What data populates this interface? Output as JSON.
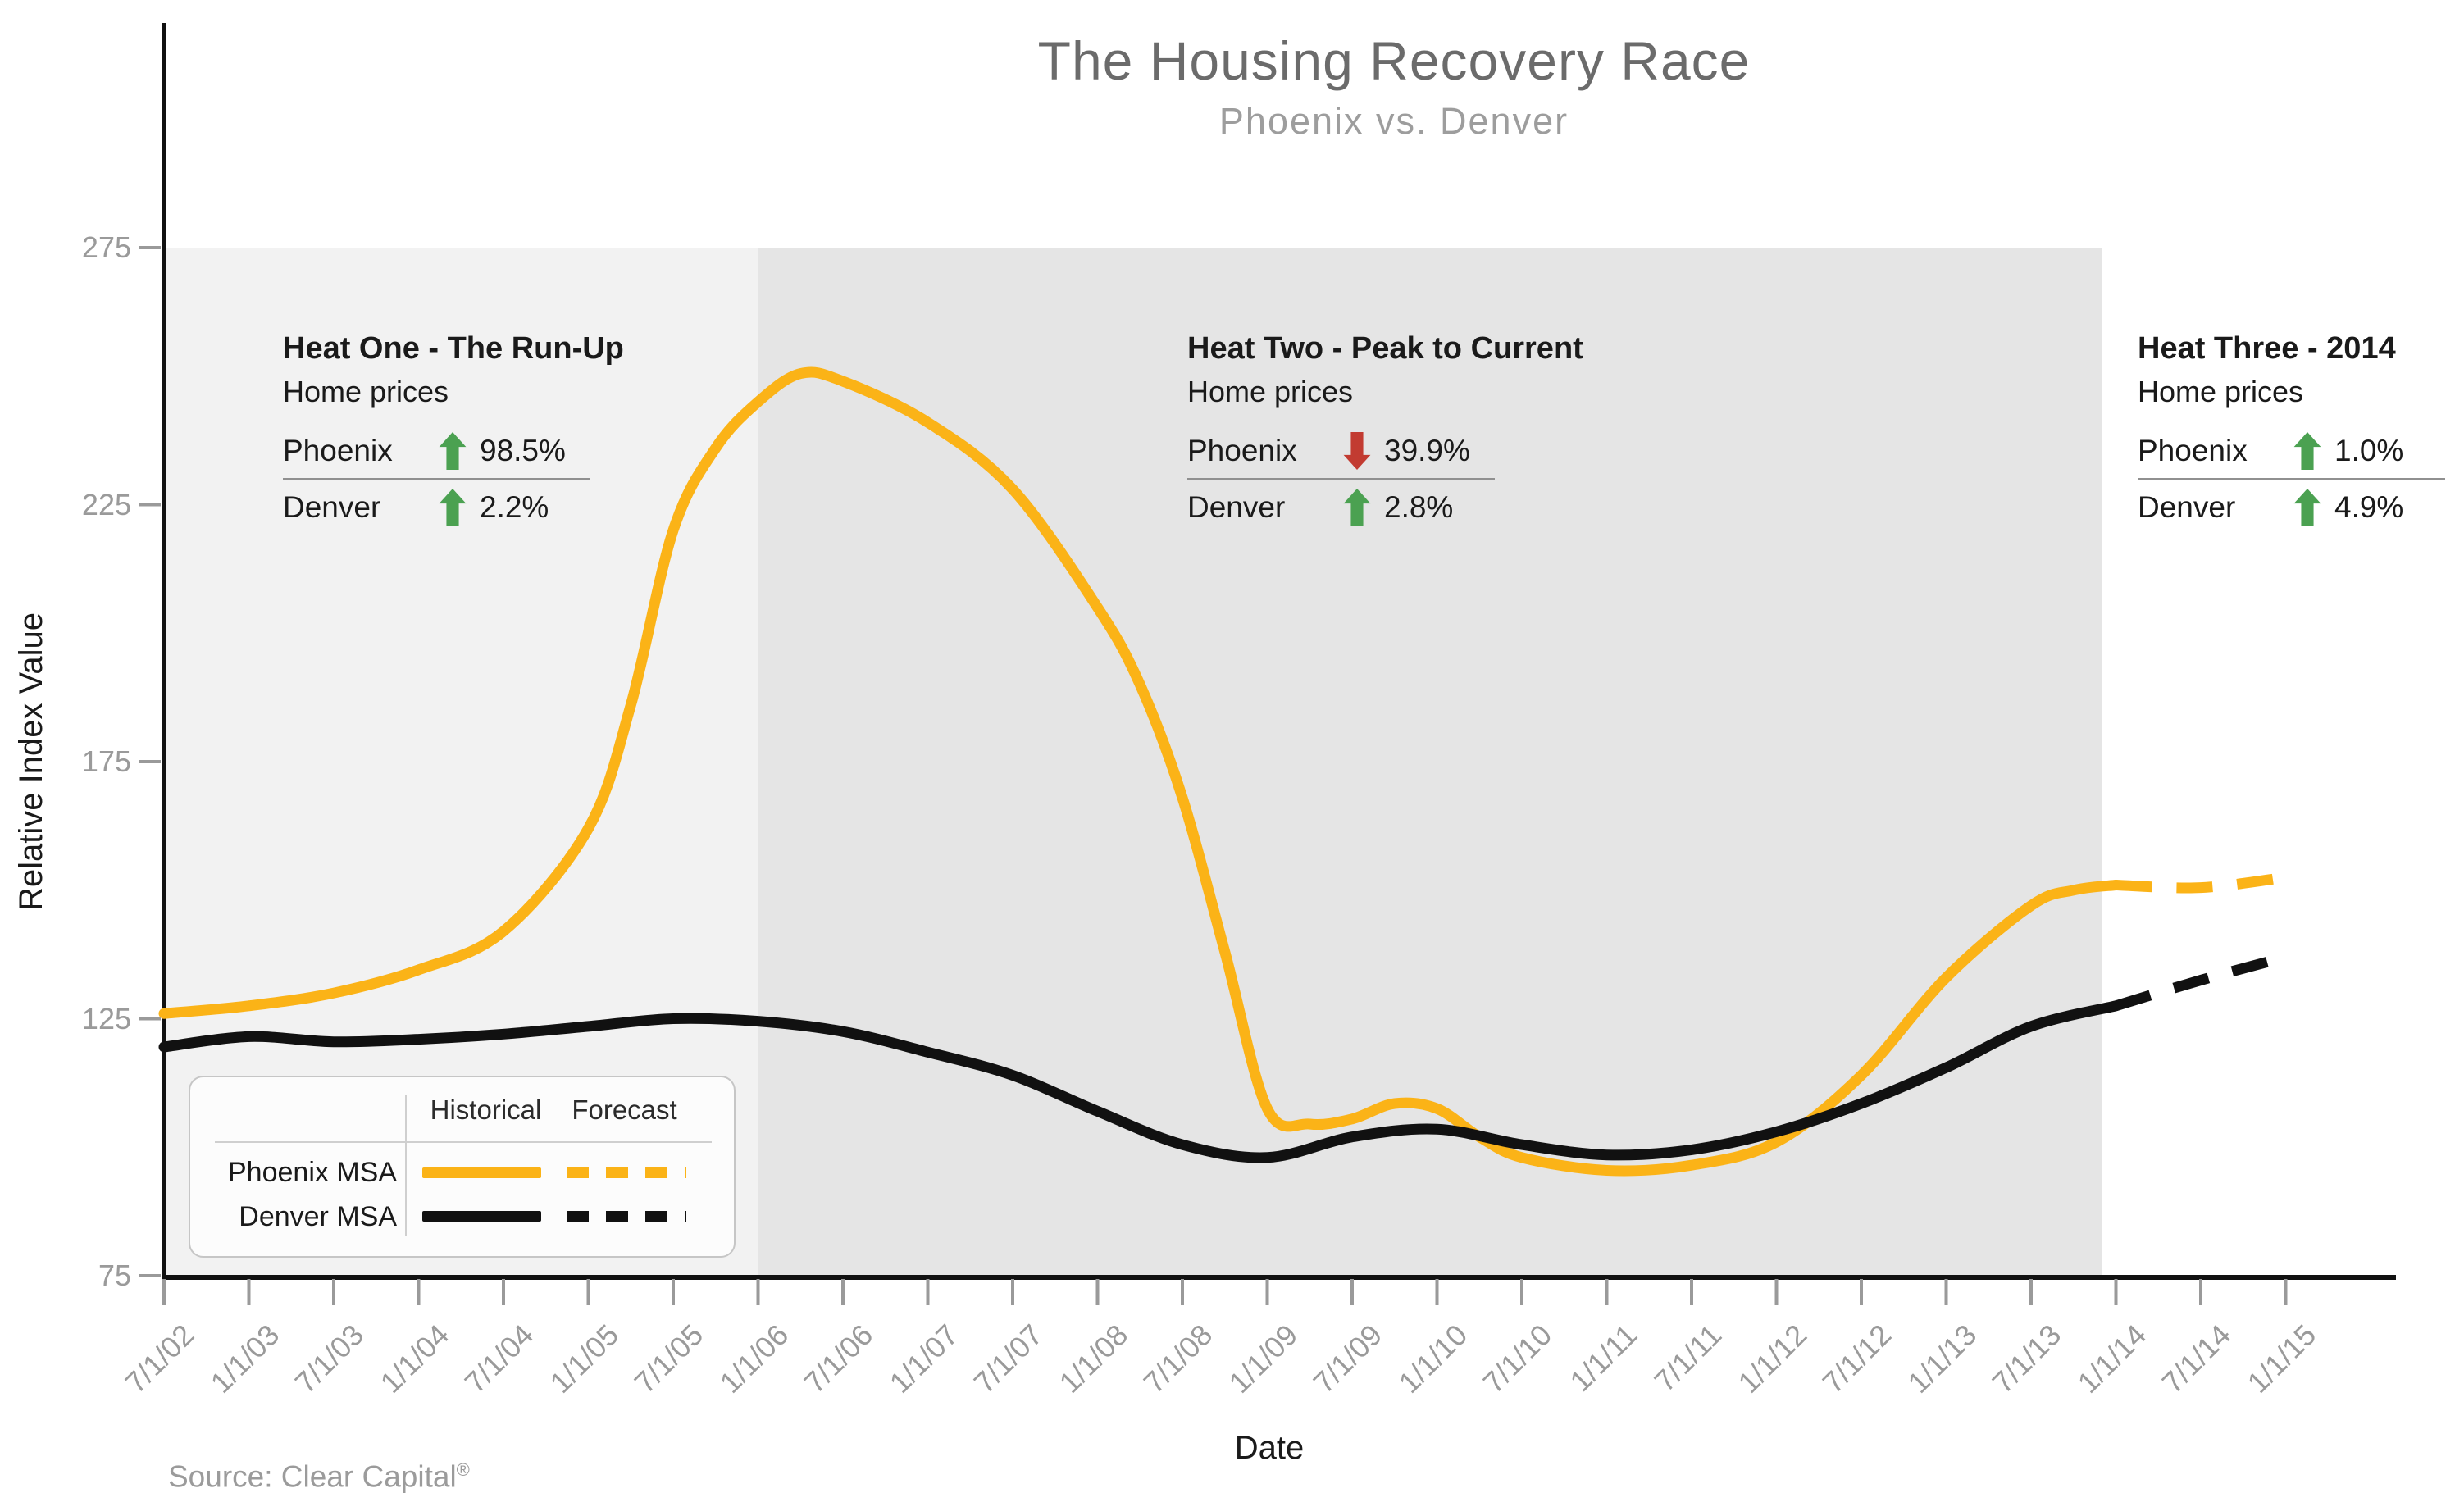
{
  "header": {
    "title": "The Housing Recovery Race",
    "subtitle": "Phoenix vs. Denver"
  },
  "axes": {
    "y_label": "Relative Index Value",
    "x_label": "Date"
  },
  "source": {
    "text": "Source: Clear Capital",
    "mark": "®"
  },
  "annotations": [
    {
      "title": "Heat One - The Run-Up",
      "subtitle": "Home prices",
      "rows": [
        {
          "label": "Phoenix",
          "direction": "up",
          "value": "98.5%"
        },
        {
          "label": "Denver",
          "direction": "up",
          "value": "2.2%"
        }
      ]
    },
    {
      "title": "Heat Two - Peak to Current",
      "subtitle": "Home prices",
      "rows": [
        {
          "label": "Phoenix",
          "direction": "down",
          "value": "39.9%"
        },
        {
          "label": "Denver",
          "direction": "up",
          "value": "2.8%"
        }
      ]
    },
    {
      "title": "Heat Three - 2014",
      "subtitle": "Home prices",
      "rows": [
        {
          "label": "Phoenix",
          "direction": "up",
          "value": "1.0%"
        },
        {
          "label": "Denver",
          "direction": "up",
          "value": "4.9%"
        }
      ]
    }
  ],
  "legend": {
    "col_historical": "Historical",
    "col_forecast": "Forecast",
    "rows": [
      {
        "label": "Phoenix MSA"
      },
      {
        "label": "Denver MSA"
      }
    ]
  },
  "colors": {
    "phoenix": "#FBB317",
    "denver": "#111111",
    "up_green": "#4BA151",
    "down_red": "#C23B31",
    "region_light": "#F2F2F2",
    "region_dark": "#E5E5E5",
    "axis": "#111111",
    "tick": "#9A9A9A"
  },
  "chart_data": {
    "type": "line",
    "title": "The Housing Recovery Race",
    "subtitle": "Phoenix vs. Denver",
    "xlabel": "Date",
    "ylabel": "Relative Index Value",
    "ylim": [
      75,
      275
    ],
    "y_ticks": [
      275,
      225,
      175,
      125,
      75
    ],
    "x_tick_labels": [
      "7/1/02",
      "1/1/03",
      "7/1/03",
      "1/1/04",
      "7/1/04",
      "1/1/05",
      "7/1/05",
      "1/1/06",
      "7/1/06",
      "1/1/07",
      "7/1/07",
      "1/1/08",
      "7/1/08",
      "1/1/09",
      "7/1/09",
      "1/1/10",
      "7/1/10",
      "1/1/11",
      "7/1/11",
      "1/1/12",
      "7/1/12",
      "1/1/13",
      "7/1/13",
      "1/1/14",
      "7/1/14",
      "1/1/15"
    ],
    "grid": false,
    "legend_position": "lower-left",
    "regions": [
      {
        "name": "heat-one-shading",
        "from": "7/1/02",
        "to": "1/1/06",
        "fill": "#F2F2F2"
      },
      {
        "name": "heat-two-shading",
        "from": "1/1/06",
        "to": "12/1/13",
        "fill": "#E5E5E5"
      }
    ],
    "series": [
      {
        "name": "Phoenix MSA",
        "color": "#FBB317",
        "historical": [
          [
            "7/1/02",
            126
          ],
          [
            "1/1/03",
            127.5
          ],
          [
            "7/1/03",
            130
          ],
          [
            "1/1/04",
            134.5
          ],
          [
            "7/1/04",
            142
          ],
          [
            "1/1/05",
            162
          ],
          [
            "4/1/05",
            186
          ],
          [
            "7/1/05",
            220
          ],
          [
            "10/1/05",
            236
          ],
          [
            "1/1/06",
            245
          ],
          [
            "4/1/06",
            250.5
          ],
          [
            "7/1/06",
            249
          ],
          [
            "1/1/07",
            241
          ],
          [
            "7/1/07",
            228
          ],
          [
            "1/1/08",
            205
          ],
          [
            "4/1/08",
            190
          ],
          [
            "7/1/08",
            168
          ],
          [
            "10/1/08",
            138
          ],
          [
            "1/1/09",
            107.5
          ],
          [
            "4/1/09",
            104.5
          ],
          [
            "7/1/09",
            105.5
          ],
          [
            "10/1/09",
            108.5
          ],
          [
            "1/1/10",
            107.5
          ],
          [
            "4/1/10",
            102
          ],
          [
            "7/1/10",
            98
          ],
          [
            "1/1/11",
            95.5
          ],
          [
            "7/1/11",
            96.5
          ],
          [
            "1/1/12",
            101
          ],
          [
            "7/1/12",
            114
          ],
          [
            "1/1/13",
            133
          ],
          [
            "7/1/13",
            147
          ],
          [
            "10/1/13",
            150
          ],
          [
            "1/1/14",
            151
          ]
        ],
        "forecast": [
          [
            "1/1/14",
            151
          ],
          [
            "7/1/14",
            150.5
          ],
          [
            "1/1/15",
            152.5
          ]
        ]
      },
      {
        "name": "Denver MSA",
        "color": "#111111",
        "historical": [
          [
            "7/1/02",
            119.5
          ],
          [
            "1/1/03",
            121.5
          ],
          [
            "7/1/03",
            120.5
          ],
          [
            "1/1/04",
            121
          ],
          [
            "7/1/04",
            122
          ],
          [
            "1/1/05",
            123.5
          ],
          [
            "7/1/05",
            125
          ],
          [
            "1/1/06",
            124.5
          ],
          [
            "7/1/06",
            122.5
          ],
          [
            "1/1/07",
            118.5
          ],
          [
            "7/1/07",
            114
          ],
          [
            "1/1/08",
            107
          ],
          [
            "7/1/08",
            100.5
          ],
          [
            "1/1/09",
            98
          ],
          [
            "7/1/09",
            102
          ],
          [
            "1/1/10",
            103.5
          ],
          [
            "7/1/10",
            100.5
          ],
          [
            "1/1/11",
            98.5
          ],
          [
            "7/1/11",
            99.5
          ],
          [
            "1/1/12",
            103
          ],
          [
            "7/1/12",
            108.5
          ],
          [
            "1/1/13",
            115.5
          ],
          [
            "7/1/13",
            123.5
          ],
          [
            "1/1/14",
            127.5
          ]
        ],
        "forecast": [
          [
            "1/1/14",
            127.5
          ],
          [
            "7/1/14",
            132.5
          ],
          [
            "1/1/15",
            137
          ]
        ]
      }
    ]
  }
}
